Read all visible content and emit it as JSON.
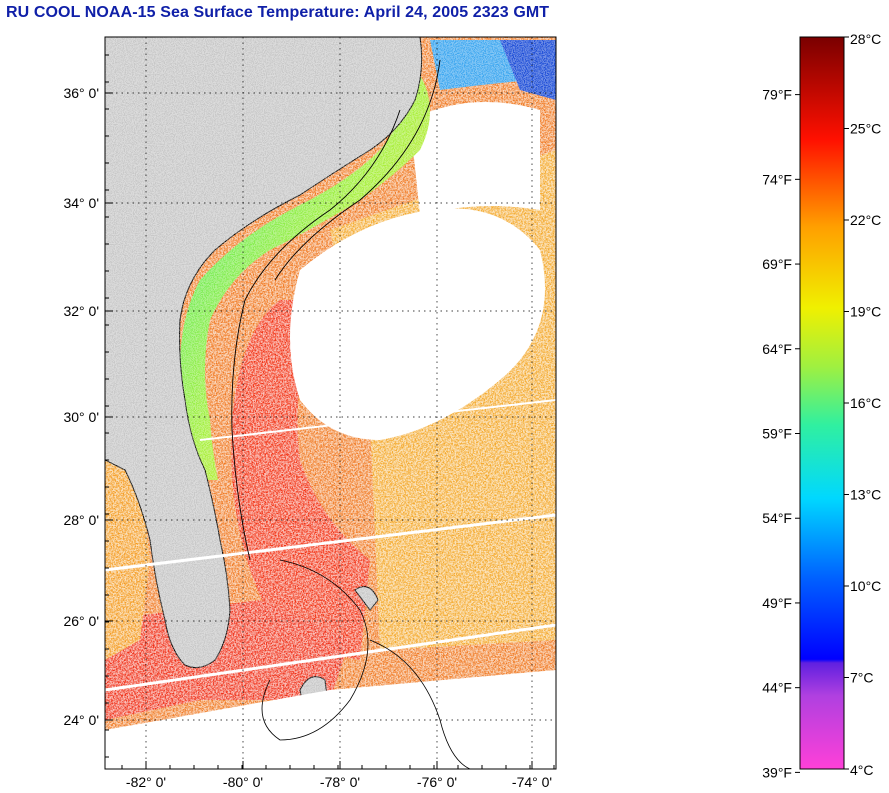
{
  "title": "RU COOL  NOAA-15  Sea Surface Temperature:  April 24, 2005 2323 GMT",
  "map": {
    "lat_labels": [
      "36° 0'",
      "34° 0'",
      "32° 0'",
      "30° 0'",
      "28° 0'",
      "26° 0'",
      "24° 0'"
    ],
    "lon_labels": [
      "-82° 0'",
      "-80° 0'",
      "-78° 0'",
      "-76° 0'",
      "-74° 0'"
    ],
    "land_color": "#c8c8c8",
    "cloud_color": "#ffffff",
    "grid": "dotted"
  },
  "colorbar": {
    "fahrenheit_labels": [
      "79°F",
      "74°F",
      "69°F",
      "64°F",
      "59°F",
      "54°F",
      "49°F",
      "44°F",
      "39°F"
    ],
    "celsius_labels": [
      "28°C",
      "25°C",
      "22°C",
      "19°C",
      "16°C",
      "13°C",
      "10°C",
      "7°C",
      "4°C"
    ],
    "celsius_values": [
      28,
      25,
      22,
      19,
      16,
      13,
      10,
      7,
      4
    ],
    "range_c": [
      4,
      28
    ]
  }
}
